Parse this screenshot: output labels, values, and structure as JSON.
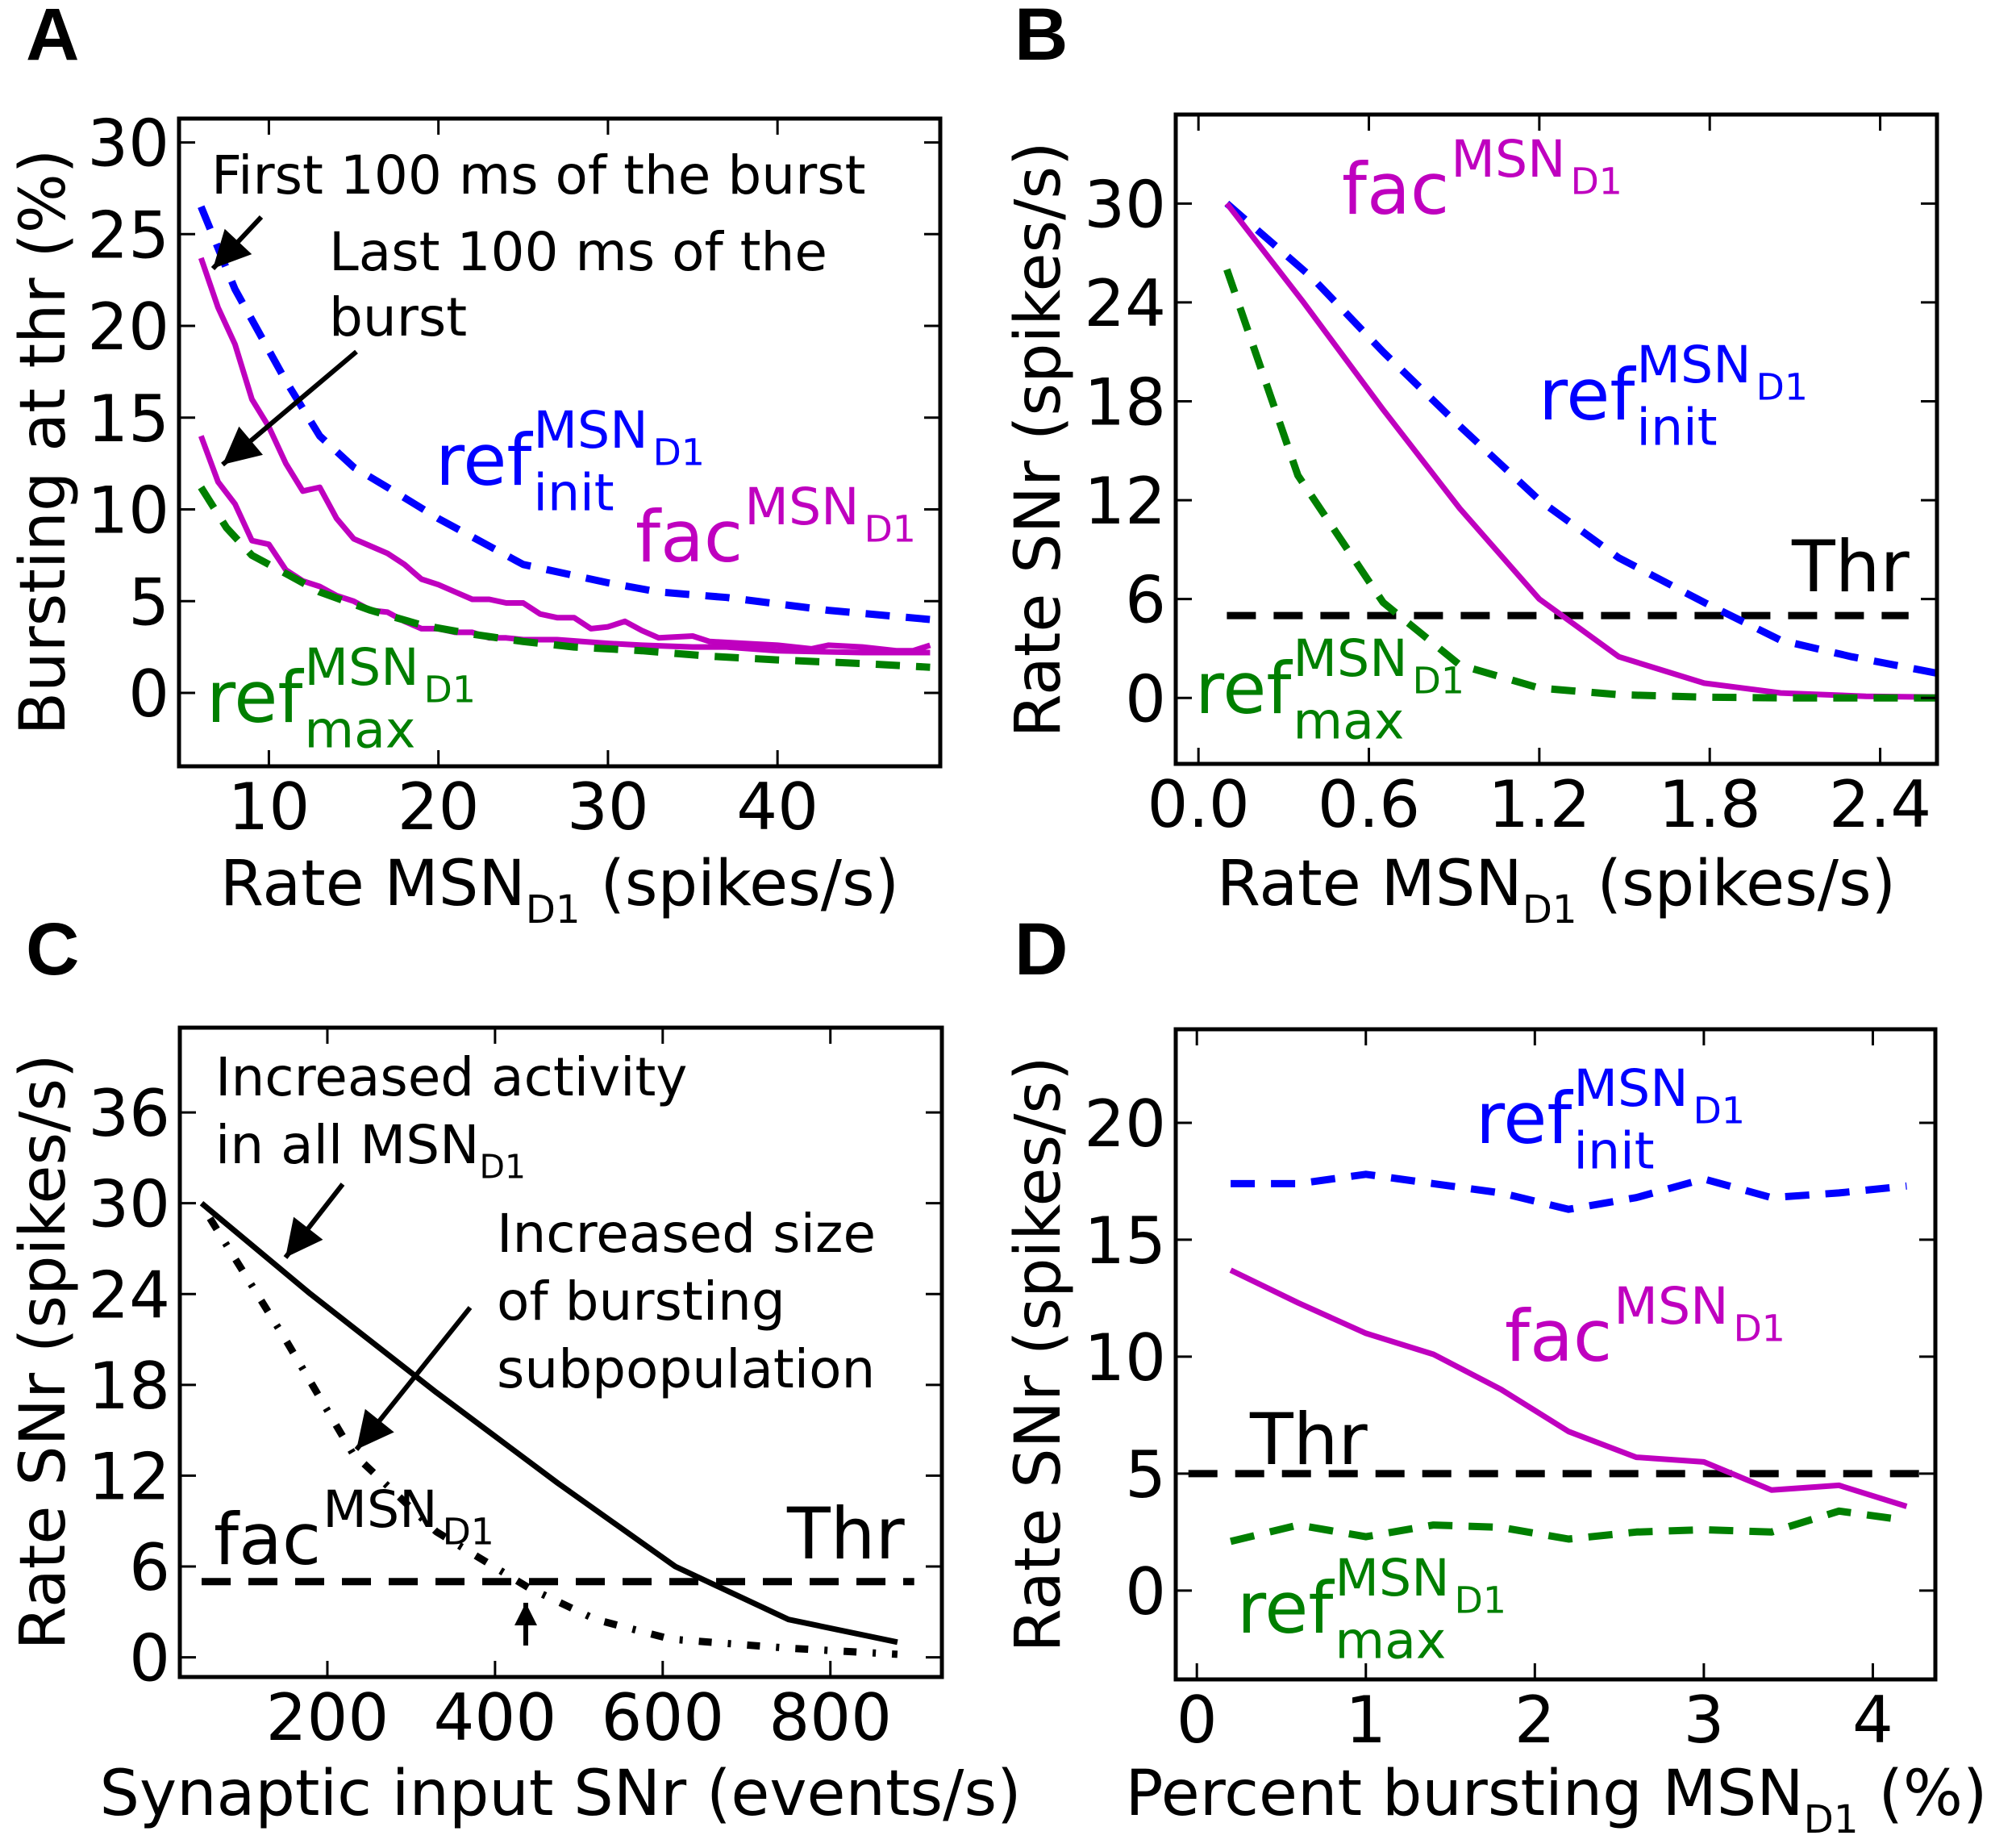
{
  "colors": {
    "ref_init": "#0000ff",
    "fac": "#bf00bf",
    "ref_max": "#007f00",
    "thr": "#000000",
    "black": "#000000"
  },
  "chart_data": [
    {
      "panel": "A",
      "type": "line",
      "xlabel": {
        "pre": "Rate MSN",
        "sub": "D1",
        "post": " (spikes/s)"
      },
      "ylabel": "Bursting at thr (%)",
      "xlim": [
        4.7,
        49.6
      ],
      "ylim": [
        -4,
        31.3
      ],
      "xticks": [
        10,
        20,
        30,
        40
      ],
      "xticklabels": [
        "10",
        "20",
        "30",
        "40"
      ],
      "yticks": [
        0,
        5,
        10,
        15,
        20,
        25,
        30
      ],
      "yticklabels": [
        "0",
        "5",
        "10",
        "15",
        "20",
        "25",
        "30"
      ],
      "grid": false,
      "series": [
        {
          "key": "ref_init",
          "style": "dashed",
          "x": [
            6,
            8,
            11,
            13,
            15,
            17,
            20,
            25,
            30,
            33,
            37,
            43,
            49
          ],
          "y": [
            26.5,
            22,
            17,
            14,
            12.3,
            11.2,
            9.5,
            7,
            6,
            5.5,
            5.2,
            4.5,
            4
          ]
        },
        {
          "key": "fac",
          "style": "solid",
          "x": [
            6,
            7,
            8,
            9,
            10,
            11,
            12,
            13,
            14,
            15,
            16,
            17,
            18,
            19,
            20,
            21,
            22,
            23,
            24,
            25,
            26,
            27,
            28,
            29,
            30,
            31,
            32,
            33,
            35,
            36,
            38,
            40,
            42,
            43,
            45,
            47,
            48,
            49
          ],
          "y": [
            23.7,
            21,
            19,
            16,
            14.5,
            12.5,
            11,
            11.2,
            9.5,
            8.4,
            8,
            7.6,
            7,
            6.2,
            5.9,
            5.5,
            5.1,
            5.1,
            4.9,
            4.9,
            4.3,
            4.1,
            4.1,
            3.5,
            3.6,
            3.9,
            3.4,
            3.0,
            3.1,
            2.8,
            2.7,
            2.6,
            2.4,
            2.6,
            2.5,
            2.3,
            2.3,
            2.6
          ]
        },
        {
          "key": "fac",
          "style": "solid",
          "x": [
            6,
            7,
            8,
            9,
            10,
            11,
            12,
            13,
            14,
            15,
            16,
            17,
            18,
            19,
            20,
            21,
            22,
            23,
            24,
            25,
            27,
            30,
            32,
            35,
            37,
            40,
            45,
            49
          ],
          "y": [
            14,
            11.5,
            10.3,
            8.3,
            8.1,
            6.7,
            6.1,
            5.8,
            5.3,
            5,
            4.5,
            4.4,
            3.9,
            3.5,
            3.5,
            3.3,
            3.3,
            3,
            3,
            2.9,
            2.9,
            2.7,
            2.6,
            2.5,
            2.5,
            2.3,
            2.2,
            2.2
          ]
        },
        {
          "key": "ref_max",
          "style": "dashed",
          "x": [
            6,
            7.5,
            9,
            11,
            13,
            16,
            19,
            22,
            25,
            28,
            32,
            36,
            40,
            45,
            49
          ],
          "y": [
            11.2,
            9,
            7.5,
            6.5,
            5.5,
            4.5,
            3.7,
            3.2,
            2.8,
            2.5,
            2.3,
            2,
            1.8,
            1.6,
            1.4
          ]
        }
      ],
      "labels": [
        {
          "key": "ref_init",
          "base": "ref",
          "sup": "MSN",
          "supsub": "D1",
          "sub": "init"
        },
        {
          "key": "fac",
          "base": "fac",
          "sup": "MSN",
          "supsub": "D1",
          "sub": ""
        },
        {
          "key": "ref_max",
          "base": "ref",
          "sup": "MSN",
          "supsub": "D1",
          "sub": "max"
        }
      ],
      "annotations": [
        "First 100 ms of the burst",
        "Last 100 ms of the",
        "burst"
      ]
    },
    {
      "panel": "B",
      "type": "line",
      "xlabel": {
        "pre": "Rate MSN",
        "sub": "D1",
        "post": " (spikes/s)"
      },
      "ylabel": "Rate SNr (spikes/s)",
      "xlim": [
        -0.08,
        2.6
      ],
      "ylim": [
        -4,
        35.4
      ],
      "xticks": [
        0,
        0.6,
        1.2,
        1.8,
        2.4
      ],
      "xticklabels": [
        "0.0",
        "0.6",
        "1.2",
        "1.8",
        "2.4"
      ],
      "yticks": [
        0,
        6,
        12,
        18,
        24,
        30
      ],
      "yticklabels": [
        "0",
        "6",
        "12",
        "18",
        "24",
        "30"
      ],
      "grid": false,
      "threshold": 5,
      "series": [
        {
          "key": "ref_init",
          "style": "dashed",
          "x": [
            0.1,
            0.4,
            0.65,
            0.92,
            1.2,
            1.48,
            1.78,
            2.05,
            2.3,
            2.6
          ],
          "y": [
            30,
            25.5,
            21,
            16.5,
            12,
            8.5,
            5.8,
            3.5,
            2.5,
            1.5
          ]
        },
        {
          "key": "fac",
          "style": "solid",
          "x": [
            0.1,
            0.37,
            0.65,
            0.92,
            1.2,
            1.48,
            1.78,
            2.05,
            2.35,
            2.6
          ],
          "y": [
            30,
            24,
            17.5,
            11.5,
            6,
            2.5,
            0.9,
            0.3,
            0.1,
            0.05
          ]
        },
        {
          "key": "ref_max",
          "style": "dashed",
          "x": [
            0.1,
            0.35,
            0.65,
            0.92,
            1.2,
            1.48,
            1.78,
            2.1,
            2.6
          ],
          "y": [
            26,
            13.5,
            5.8,
            2,
            0.6,
            0.2,
            0.05,
            0,
            0
          ]
        }
      ],
      "labels": [
        {
          "key": "fac",
          "base": "fac",
          "sup": "MSN",
          "supsub": "D1",
          "sub": ""
        },
        {
          "key": "ref_init",
          "base": "ref",
          "sup": "MSN",
          "supsub": "D1",
          "sub": "init"
        },
        {
          "key": "ref_max",
          "base": "ref",
          "sup": "MSN",
          "supsub": "D1",
          "sub": "max"
        }
      ],
      "thr_label": "Thr"
    },
    {
      "panel": "C",
      "type": "line",
      "xlabel": {
        "pre": "Synaptic input SNr (events/s)",
        "sub": "",
        "post": ""
      },
      "ylabel": "Rate SNr (spikes/s)",
      "xlim": [
        24,
        933
      ],
      "ylim": [
        -1.3,
        41.6
      ],
      "xticks": [
        200,
        400,
        600,
        800
      ],
      "xticklabels": [
        "200",
        "400",
        "600",
        "800"
      ],
      "yticks": [
        0,
        6,
        12,
        18,
        24,
        30,
        36
      ],
      "yticklabels": [
        "0",
        "6",
        "12",
        "18",
        "24",
        "30",
        "36"
      ],
      "grid": false,
      "threshold": 5,
      "series": [
        {
          "key": "black",
          "style": "solid",
          "x": [
            50,
            180,
            330,
            475,
            615,
            750,
            880
          ],
          "y": [
            30,
            24,
            17.5,
            11.5,
            6,
            2.5,
            1
          ]
        },
        {
          "key": "black",
          "style": "dashdot",
          "x": [
            60,
            150,
            230,
            330,
            440,
            520,
            610,
            750,
            880
          ],
          "y": [
            29,
            21,
            13.5,
            8.3,
            4.6,
            2.5,
            1.2,
            0.6,
            0.2
          ]
        }
      ],
      "labels": [
        {
          "key": "black",
          "base": "fac",
          "sup": "MSN",
          "supsub": "D1",
          "sub": ""
        }
      ],
      "annotations": [
        {
          "pre": "Increased activity",
          "sub": "",
          "post": ""
        },
        {
          "pre": "in all MSN",
          "sub": "D1",
          "post": ""
        },
        {
          "pre": "Increased size",
          "sub": "",
          "post": ""
        },
        {
          "pre": "of bursting",
          "sub": "",
          "post": ""
        },
        {
          "pre": "subpopulation",
          "sub": "",
          "post": ""
        }
      ],
      "thr_label": "Thr"
    },
    {
      "panel": "D",
      "type": "line",
      "xlabel": {
        "pre": "Percent bursting MSN",
        "sub": "D1",
        "post": " (%)"
      },
      "ylabel": "Rate SNr (spikes/s)",
      "xlim": [
        -0.125,
        4.37
      ],
      "ylim": [
        -3.8,
        24
      ],
      "xticks": [
        0,
        1,
        2,
        3,
        4
      ],
      "xticklabels": [
        "0",
        "1",
        "2",
        "3",
        "4"
      ],
      "yticks": [
        0,
        5,
        10,
        15,
        20
      ],
      "yticklabels": [
        "0",
        "5",
        "10",
        "15",
        "20"
      ],
      "grid": false,
      "threshold": 5,
      "series": [
        {
          "key": "ref_init",
          "style": "dashed",
          "x": [
            0.2,
            0.6,
            1.0,
            1.4,
            1.8,
            2.2,
            2.6,
            3.0,
            3.4,
            3.8,
            4.2
          ],
          "y": [
            17.4,
            17.4,
            17.8,
            17.4,
            17.0,
            16.3,
            16.8,
            17.6,
            16.8,
            17.0,
            17.3
          ]
        },
        {
          "key": "fac",
          "style": "solid",
          "x": [
            0.2,
            0.6,
            1.0,
            1.4,
            1.8,
            2.2,
            2.6,
            3.0,
            3.4,
            3.8,
            4.2
          ],
          "y": [
            13.7,
            12.3,
            11.0,
            10.1,
            8.6,
            6.8,
            5.7,
            5.5,
            4.3,
            4.5,
            3.6
          ]
        },
        {
          "key": "ref_max",
          "style": "dashed",
          "x": [
            0.2,
            0.6,
            1.0,
            1.4,
            1.8,
            2.2,
            2.6,
            3.0,
            3.4,
            3.8,
            4.2
          ],
          "y": [
            2.1,
            2.8,
            2.3,
            2.8,
            2.7,
            2.2,
            2.5,
            2.6,
            2.5,
            3.4,
            3.0
          ]
        }
      ],
      "labels": [
        {
          "key": "ref_init",
          "base": "ref",
          "sup": "MSN",
          "supsub": "D1",
          "sub": "init"
        },
        {
          "key": "fac",
          "base": "fac",
          "sup": "MSN",
          "supsub": "D1",
          "sub": ""
        },
        {
          "key": "ref_max",
          "base": "ref",
          "sup": "MSN",
          "supsub": "D1",
          "sub": "max"
        }
      ],
      "thr_label": "Thr"
    }
  ]
}
